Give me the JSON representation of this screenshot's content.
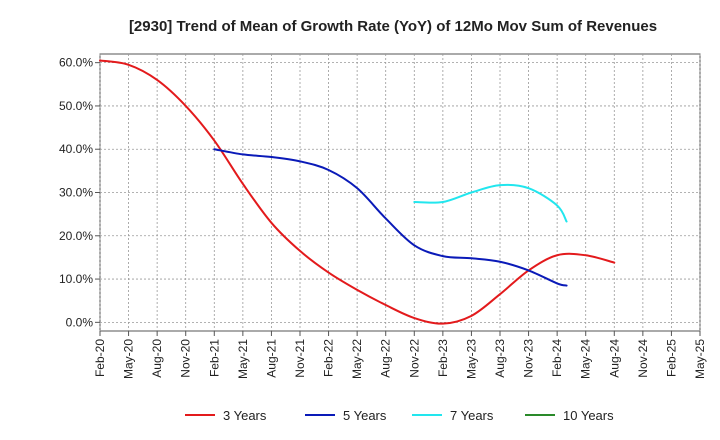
{
  "chart_data": {
    "type": "line",
    "title": "[2930]  Trend of Mean of Growth Rate (YoY) of 12Mo Mov Sum of Revenues",
    "xlabel": "",
    "ylabel": "",
    "ylim": [
      -2,
      62
    ],
    "y_ticks": [
      0,
      10,
      20,
      30,
      40,
      50,
      60
    ],
    "y_tick_labels": [
      "0.0%",
      "10.0%",
      "20.0%",
      "30.0%",
      "40.0%",
      "50.0%",
      "60.0%"
    ],
    "x_tick_labels": [
      "Feb-20",
      "May-20",
      "Aug-20",
      "Nov-20",
      "Feb-21",
      "May-21",
      "Aug-21",
      "Nov-21",
      "Feb-22",
      "May-22",
      "Aug-22",
      "Nov-22",
      "Feb-23",
      "May-23",
      "Aug-23",
      "Nov-23",
      "Feb-24",
      "May-24",
      "Aug-24",
      "Nov-24",
      "Feb-25",
      "May-25"
    ],
    "grid": true,
    "series": [
      {
        "name": "3 Years",
        "color": "#e31a1c",
        "points": [
          [
            0,
            60.5
          ],
          [
            1,
            59.5
          ],
          [
            2,
            56
          ],
          [
            3,
            50
          ],
          [
            4,
            42
          ],
          [
            5,
            32
          ],
          [
            6,
            23
          ],
          [
            7,
            16.5
          ],
          [
            8,
            11.5
          ],
          [
            9,
            7.5
          ],
          [
            10,
            4
          ],
          [
            11,
            1
          ],
          [
            12,
            -0.3
          ],
          [
            13,
            1.5
          ],
          [
            14,
            6.5
          ],
          [
            15,
            12
          ],
          [
            16,
            15.5
          ],
          [
            17,
            15.5
          ],
          [
            18,
            13.8
          ]
        ]
      },
      {
        "name": "5 Years",
        "color": "#0a1ab8",
        "points": [
          [
            4,
            40
          ],
          [
            5,
            38.8
          ],
          [
            6,
            38.2
          ],
          [
            7,
            37.2
          ],
          [
            8,
            35.2
          ],
          [
            9,
            31
          ],
          [
            10,
            24
          ],
          [
            11,
            17.8
          ],
          [
            12,
            15.3
          ],
          [
            13,
            14.8
          ],
          [
            14,
            14
          ],
          [
            15,
            12
          ],
          [
            16,
            9
          ],
          [
            16.33,
            8.5
          ]
        ]
      },
      {
        "name": "7 Years",
        "color": "#22e6ee",
        "points": [
          [
            11,
            27.8
          ],
          [
            12,
            27.8
          ],
          [
            13,
            30
          ],
          [
            14,
            31.7
          ],
          [
            15,
            31
          ],
          [
            16,
            27
          ],
          [
            16.33,
            23.3
          ]
        ]
      },
      {
        "name": "10 Years",
        "color": "#2a8a2a",
        "points": []
      }
    ]
  }
}
